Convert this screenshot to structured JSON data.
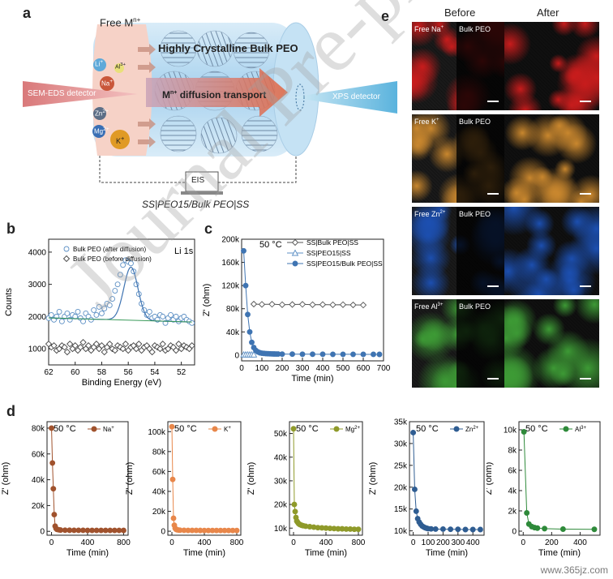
{
  "panel_labels": {
    "a": "a",
    "b": "b",
    "c": "c",
    "d": "d",
    "e": "e"
  },
  "panel_a": {
    "free_label": "Free M",
    "free_sup": "n+",
    "title": "Highly Crystalline Bulk PEO",
    "transport": "diffusion transport",
    "transport_prefix": "M",
    "transport_sup": "n+",
    "sem_label": "SEM-EDS detector",
    "xps_label": "XPS detector",
    "eis_label": "EIS",
    "cell_label": "SS|PEO15/Bulk PEO|SS",
    "ions": [
      {
        "base": "Li",
        "sup": "+",
        "color": "#5fa9d9"
      },
      {
        "base": "Al",
        "sup": "3+",
        "color": "#e9e07a"
      },
      {
        "base": "Na",
        "sup": "+",
        "color": "#c9573a"
      },
      {
        "base": "Zn",
        "sup": "2+",
        "color": "#5d6e86"
      },
      {
        "base": "Mg",
        "sup": "2+",
        "color": "#3a6fb4"
      },
      {
        "base": "K",
        "sup": "+",
        "color": "#e09a25"
      }
    ]
  },
  "panel_e": {
    "before": "Before",
    "after": "After",
    "rows": [
      {
        "free": "Free Na",
        "sup": "+",
        "bulk": "Bulk PEO",
        "color": "#c81c1c"
      },
      {
        "free": "Free K",
        "sup": "+",
        "bulk": "Bulk PEO",
        "color": "#c9872e"
      },
      {
        "free": "Free Zn",
        "sup": "2+",
        "bulk": "Bulk PEO",
        "color": "#1c4fb0"
      },
      {
        "free": "Free Al",
        "sup": "3+",
        "bulk": "Bulk PEO",
        "color": "#3d9a35"
      }
    ]
  },
  "watermark": "Journal Pre-proof",
  "site_watermark": "www.365jz.com",
  "chart_data": [
    {
      "id": "b",
      "type": "scatter",
      "xlabel": "Binding Energy (eV)",
      "ylabel": "Counts",
      "xlim": [
        62,
        51
      ],
      "ylim": [
        500,
        4400
      ],
      "xticks": [
        62,
        60,
        58,
        56,
        54,
        52
      ],
      "yticks": [
        1000,
        2000,
        3000,
        4000
      ],
      "annotation": "Li 1s",
      "series": [
        {
          "name": "Bulk PEO (after diffusion)",
          "marker": "circle",
          "color": "#5c8fc4",
          "x": [
            62,
            61.8,
            61.6,
            61.4,
            61.2,
            61,
            60.8,
            60.6,
            60.4,
            60.2,
            60,
            59.8,
            59.6,
            59.4,
            59.2,
            59,
            58.8,
            58.6,
            58.4,
            58.2,
            58,
            57.8,
            57.6,
            57.4,
            57.2,
            57,
            56.8,
            56.6,
            56.4,
            56.2,
            56,
            55.8,
            55.6,
            55.4,
            55.2,
            55,
            54.8,
            54.6,
            54.4,
            54.2,
            54,
            53.8,
            53.6,
            53.4,
            53.2,
            53,
            52.8,
            52.6,
            52.4,
            52.2,
            52,
            51.8,
            51.6,
            51.4,
            51.2
          ],
          "y": [
            1950,
            2050,
            1900,
            2000,
            2150,
            1850,
            2000,
            2100,
            1900,
            2050,
            2000,
            2150,
            1950,
            1850,
            2100,
            2000,
            1900,
            2200,
            2050,
            2300,
            2100,
            2250,
            2400,
            2350,
            2550,
            2800,
            3000,
            3300,
            3600,
            3750,
            3700,
            3650,
            3400,
            3000,
            2700,
            2400,
            2200,
            2050,
            2150,
            1950,
            2000,
            1900,
            2050,
            2000,
            1800,
            1950,
            2050,
            1900,
            2000,
            1850,
            1950,
            2000,
            1900,
            1850,
            1800
          ]
        },
        {
          "name": "Bulk PEO (before diffusion)",
          "marker": "diamond",
          "color": "#444444",
          "x": [
            62,
            61.8,
            61.6,
            61.4,
            61.2,
            61,
            60.8,
            60.6,
            60.4,
            60.2,
            60,
            59.8,
            59.6,
            59.4,
            59.2,
            59,
            58.8,
            58.6,
            58.4,
            58.2,
            58,
            57.8,
            57.6,
            57.4,
            57.2,
            57,
            56.8,
            56.6,
            56.4,
            56.2,
            56,
            55.8,
            55.6,
            55.4,
            55.2,
            55,
            54.8,
            54.6,
            54.4,
            54.2,
            54,
            53.8,
            53.6,
            53.4,
            53.2,
            53,
            52.8,
            52.6,
            52.4,
            52.2,
            52,
            51.8,
            51.6,
            51.4,
            51.2
          ],
          "y": [
            1150,
            1050,
            1100,
            950,
            1000,
            1100,
            1050,
            900,
            1150,
            1000,
            1100,
            950,
            1050,
            1200,
            1000,
            1100,
            950,
            1050,
            1150,
            1000,
            1100,
            900,
            1050,
            1150,
            1000,
            950,
            1100,
            1050,
            1000,
            1150,
            950,
            1050,
            1100,
            1000,
            1150,
            950,
            1050,
            1100,
            1000,
            900,
            1100,
            1050,
            1000,
            1150,
            950,
            1000,
            1100,
            1050,
            950,
            1150,
            1000,
            1100,
            1050,
            1000,
            1100
          ]
        }
      ]
    },
    {
      "id": "c",
      "type": "line",
      "xlabel": "Time (min)",
      "ylabel": "Z' (ohm)",
      "xlim": [
        0,
        700
      ],
      "ylim": [
        -10000,
        200000
      ],
      "xticks": [
        0,
        100,
        200,
        300,
        400,
        500,
        600,
        700
      ],
      "yticks": [
        0,
        40000,
        80000,
        120000,
        160000,
        200000
      ],
      "ytick_labels": [
        "0",
        "40k",
        "80k",
        "120k",
        "160k",
        "200k"
      ],
      "annotation": "50 °C",
      "series": [
        {
          "name": "SS|Bulk PEO|SS",
          "marker": "diamond",
          "filled": false,
          "color": "#555555",
          "x": [
            60,
            100,
            150,
            200,
            250,
            300,
            350,
            400,
            450,
            500,
            550,
            600
          ],
          "y": [
            88000,
            87500,
            87800,
            87000,
            87300,
            87600,
            87000,
            87200,
            86800,
            87000,
            86600,
            86400
          ]
        },
        {
          "name": "SS|PEO15|SS",
          "marker": "triangle",
          "filled": false,
          "color": "#5c8fc4",
          "x": [
            10,
            20,
            30,
            40,
            50,
            60
          ],
          "y": [
            800,
            800,
            800,
            800,
            800,
            800
          ]
        },
        {
          "name": "SS|PEO15/Bulk PEO|SS",
          "marker": "circle",
          "filled": true,
          "color": "#3f74b2",
          "x": [
            10,
            20,
            30,
            40,
            50,
            60,
            70,
            80,
            90,
            100,
            110,
            120,
            130,
            140,
            150,
            160,
            170,
            180,
            200,
            250,
            300,
            350,
            400,
            450,
            500,
            550,
            600,
            650,
            680
          ],
          "y": [
            180000,
            120000,
            70000,
            40000,
            22000,
            13000,
            8000,
            5500,
            4000,
            3200,
            2800,
            2500,
            2300,
            2100,
            2000,
            1900,
            1850,
            1800,
            1700,
            1600,
            1500,
            1450,
            1400,
            1350,
            1300,
            1300,
            1250,
            1250,
            1200
          ]
        }
      ]
    },
    {
      "id": "d1",
      "type": "line",
      "xlabel": "Time (min)",
      "ylabel": "Z' (ohm)",
      "xlim": [
        -50,
        850
      ],
      "ylim": [
        -3000,
        85000
      ],
      "xticks": [
        0,
        400,
        800
      ],
      "yticks": [
        0,
        20000,
        40000,
        60000,
        80000
      ],
      "ytick_labels": [
        "0",
        "20k",
        "40k",
        "60k",
        "80k"
      ],
      "annotation": "50 °C",
      "series": [
        {
          "name": "Na",
          "sup": "+",
          "color": "#a0522d",
          "x": [
            0,
            10,
            20,
            30,
            40,
            50,
            60,
            80,
            100,
            150,
            200,
            250,
            300,
            350,
            400,
            450,
            500,
            550,
            600,
            650,
            700,
            750,
            800
          ],
          "y": [
            80000,
            53000,
            33000,
            13000,
            4000,
            2200,
            1500,
            1200,
            1000,
            900,
            850,
            800,
            800,
            780,
            760,
            750,
            750,
            740,
            730,
            720,
            720,
            710,
            700
          ]
        }
      ]
    },
    {
      "id": "d2",
      "type": "line",
      "xlabel": "Time (min)",
      "ylabel": "Z' (ohm)",
      "xlim": [
        -50,
        850
      ],
      "ylim": [
        -4000,
        110000
      ],
      "xticks": [
        0,
        400,
        800
      ],
      "yticks": [
        0,
        20000,
        40000,
        60000,
        80000,
        100000
      ],
      "ytick_labels": [
        "0",
        "20k",
        "40k",
        "60k",
        "80k",
        "100k"
      ],
      "annotation": "50 °C",
      "series": [
        {
          "name": "K",
          "sup": "+",
          "color": "#e8874a",
          "x": [
            0,
            10,
            20,
            30,
            40,
            50,
            60,
            80,
            100,
            150,
            200,
            250,
            300,
            350,
            400,
            450,
            500,
            550,
            600,
            650,
            700,
            750,
            800
          ],
          "y": [
            105000,
            52000,
            13000,
            6000,
            3000,
            2000,
            1500,
            1200,
            1000,
            900,
            850,
            800,
            800,
            780,
            760,
            750,
            750,
            740,
            730,
            720,
            720,
            710,
            700
          ]
        }
      ]
    },
    {
      "id": "d3",
      "type": "line",
      "xlabel": "Time (min)",
      "ylabel": "Z' (ohm)",
      "xlim": [
        -50,
        850
      ],
      "ylim": [
        7000,
        55000
      ],
      "xticks": [
        0,
        400,
        800
      ],
      "yticks": [
        10000,
        20000,
        30000,
        40000,
        50000
      ],
      "ytick_labels": [
        "10k",
        "20k",
        "30k",
        "40k",
        "50k"
      ],
      "annotation": "50 °C",
      "series": [
        {
          "name": "Mg",
          "sup": "2+",
          "color": "#8f9a2a",
          "x": [
            0,
            10,
            20,
            30,
            40,
            50,
            60,
            70,
            80,
            100,
            120,
            150,
            200,
            250,
            300,
            350,
            400,
            450,
            500,
            550,
            600,
            650,
            700,
            750,
            800
          ],
          "y": [
            52000,
            20000,
            17000,
            14500,
            13000,
            12500,
            12000,
            11700,
            11500,
            11200,
            11000,
            10800,
            10600,
            10400,
            10200,
            10100,
            10000,
            9900,
            9800,
            9700,
            9700,
            9600,
            9600,
            9500,
            9500
          ]
        }
      ]
    },
    {
      "id": "d4",
      "type": "line",
      "xlabel": "Time (min)",
      "ylabel": "Z' (ohm)",
      "xlim": [
        -25,
        475
      ],
      "ylim": [
        9000,
        35000
      ],
      "xticks": [
        0,
        100,
        200,
        300,
        400
      ],
      "yticks": [
        10000,
        15000,
        20000,
        25000,
        30000,
        35000
      ],
      "ytick_labels": [
        "10k",
        "15k",
        "20k",
        "25k",
        "30k",
        "35k"
      ],
      "annotation": "50 °C",
      "series": [
        {
          "name": "Zn",
          "sup": "2+",
          "color": "#2f5d92",
          "x": [
            0,
            10,
            20,
            30,
            40,
            50,
            60,
            70,
            80,
            90,
            100,
            120,
            150,
            200,
            250,
            300,
            350,
            400,
            450
          ],
          "y": [
            32500,
            19500,
            14500,
            12800,
            12000,
            11500,
            11100,
            10900,
            10700,
            10600,
            10500,
            10450,
            10400,
            10400,
            10350,
            10350,
            10300,
            10300,
            10300
          ]
        }
      ]
    },
    {
      "id": "d5",
      "type": "line",
      "xlabel": "Time (min)",
      "ylabel": "Z' (ohm)",
      "xlim": [
        -30,
        540
      ],
      "ylim": [
        -400,
        10800
      ],
      "xticks": [
        0,
        200,
        400
      ],
      "yticks": [
        0,
        2000,
        4000,
        6000,
        8000,
        10000
      ],
      "ytick_labels": [
        "0",
        "2k",
        "4k",
        "6k",
        "8k",
        "10k"
      ],
      "annotation": "50 °C",
      "series": [
        {
          "name": "Al",
          "sup": "3+",
          "color": "#2e8a3a",
          "x": [
            5,
            25,
            40,
            60,
            80,
            100,
            150,
            280,
            500
          ],
          "y": [
            9800,
            1800,
            700,
            450,
            350,
            300,
            250,
            200,
            180
          ]
        }
      ]
    }
  ]
}
